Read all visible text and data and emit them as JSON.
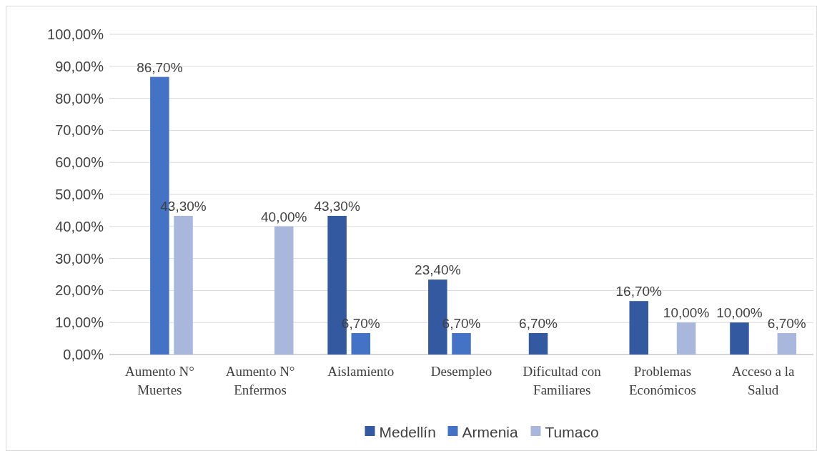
{
  "chart_data": {
    "type": "bar",
    "categories": [
      "Aumento N° Muertes",
      "Aumento N° Enfermos",
      "Aislamiento",
      "Desempleo",
      "Dificultad con Familiares",
      "Problemas Económicos",
      "Acceso a la Salud"
    ],
    "series": [
      {
        "name": "Medellín",
        "color": "#335aa1",
        "values": [
          null,
          null,
          43.3,
          23.4,
          6.7,
          16.7,
          10.0
        ],
        "value_labels": [
          null,
          null,
          "43,30%",
          "23,40%",
          "6,70%",
          "16,70%",
          "10,00%"
        ]
      },
      {
        "name": "Armenia",
        "color": "#4472c4",
        "values": [
          86.7,
          null,
          6.7,
          6.7,
          null,
          null,
          null
        ],
        "value_labels": [
          "86,70%",
          null,
          "6,70%",
          "6,70%",
          null,
          null,
          null
        ]
      },
      {
        "name": "Tumaco",
        "color": "#a9b7dc",
        "values": [
          43.3,
          40.0,
          null,
          null,
          null,
          10.0,
          6.7
        ],
        "value_labels": [
          "43,30%",
          "40,00%",
          null,
          null,
          null,
          "10,00%",
          "6,70%"
        ]
      }
    ],
    "ylim": [
      0,
      100
    ],
    "yticks": [
      {
        "value": 0,
        "label": "0,00%"
      },
      {
        "value": 10,
        "label": "10,00%"
      },
      {
        "value": 20,
        "label": "20,00%"
      },
      {
        "value": 30,
        "label": "30,00%"
      },
      {
        "value": 40,
        "label": "40,00%"
      },
      {
        "value": 50,
        "label": "50,00%"
      },
      {
        "value": 60,
        "label": "60,00%"
      },
      {
        "value": 70,
        "label": "70,00%"
      },
      {
        "value": 80,
        "label": "80,00%"
      },
      {
        "value": 90,
        "label": "90,00%"
      },
      {
        "value": 100,
        "label": "100,00%"
      }
    ],
    "grid": "y",
    "legend": "bottom"
  }
}
